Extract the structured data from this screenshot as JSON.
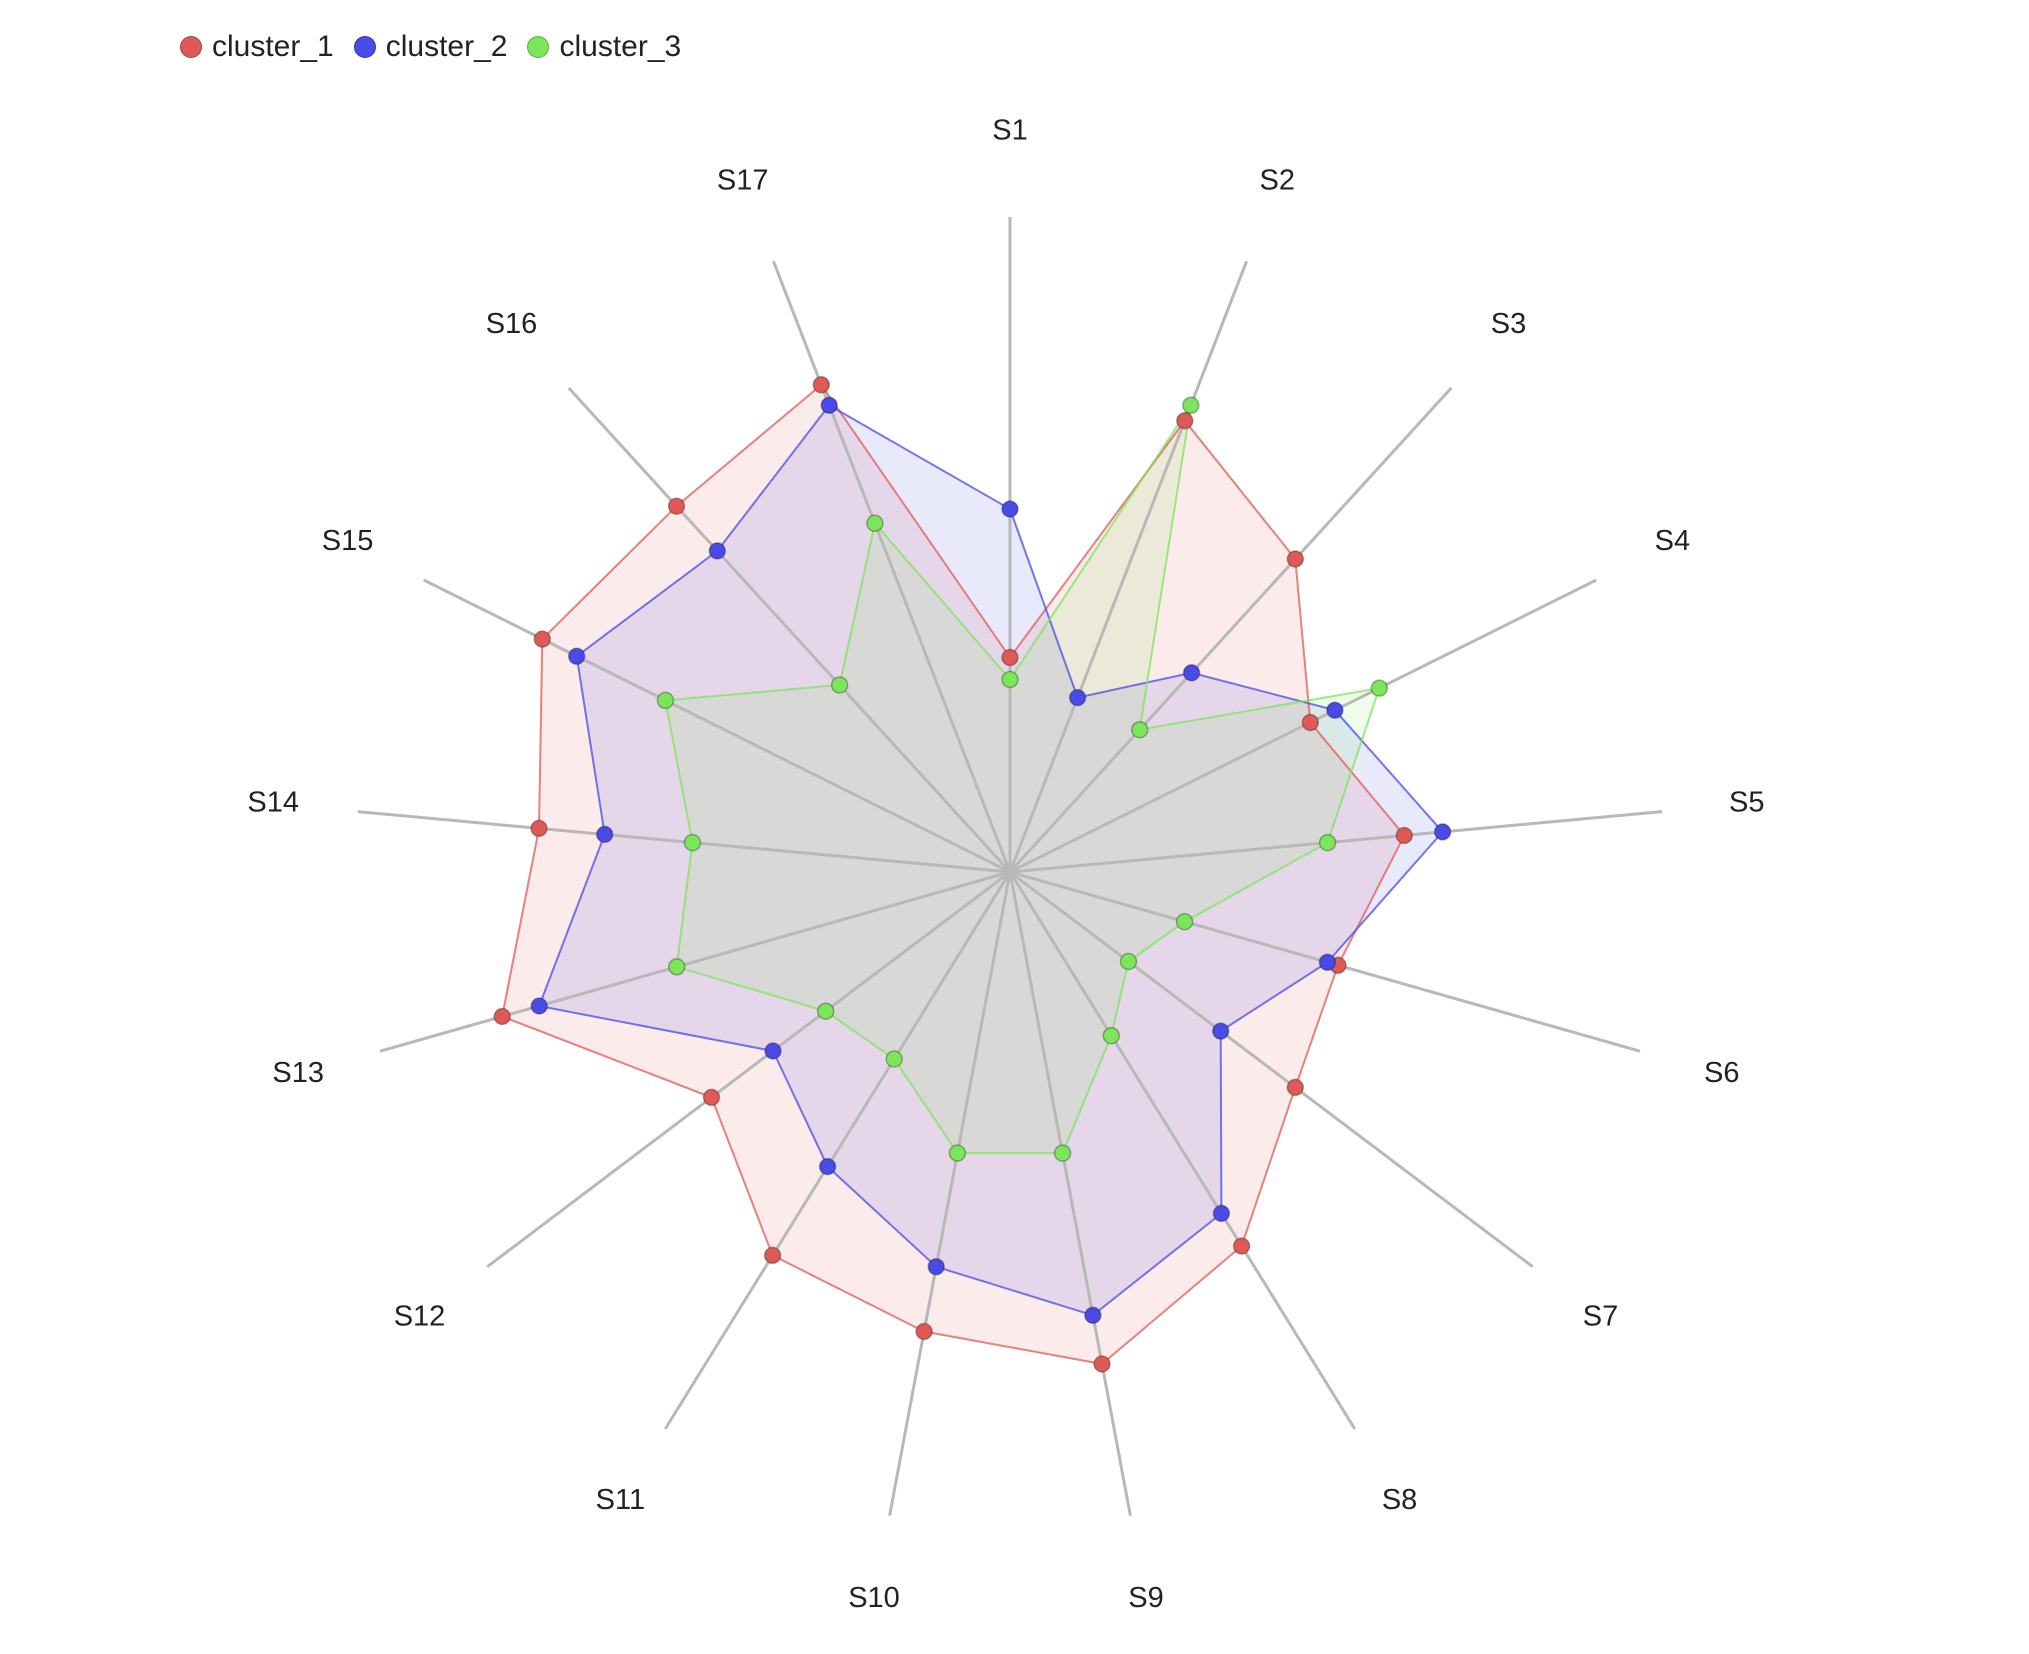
{
  "chart_data": {
    "type": "radar",
    "title": "",
    "categories": [
      "S1",
      "S2",
      "S3",
      "S4",
      "S5",
      "S6",
      "S7",
      "S8",
      "S9",
      "S10",
      "S11",
      "S12",
      "S13",
      "S14",
      "S15",
      "S16",
      "S17"
    ],
    "rmax": 100,
    "legend_position": "top-left",
    "series": [
      {
        "name": "cluster_1",
        "color": "#e05a55",
        "values": [
          39,
          88,
          77,
          61,
          72,
          62,
          65,
          80,
          91,
          85,
          82,
          68,
          96,
          86,
          95,
          90,
          95
        ]
      },
      {
        "name": "cluster_2",
        "color": "#4a4ae6",
        "values": [
          66,
          34,
          49,
          66,
          79,
          60,
          48,
          73,
          82,
          73,
          63,
          54,
          89,
          74,
          88,
          79,
          91
        ]
      },
      {
        "name": "cluster_3",
        "color": "#7ce65a",
        "values": [
          35,
          91,
          35,
          75,
          58,
          33,
          27,
          35,
          52,
          52,
          40,
          42,
          63,
          58,
          70,
          46,
          68
        ]
      }
    ]
  }
}
